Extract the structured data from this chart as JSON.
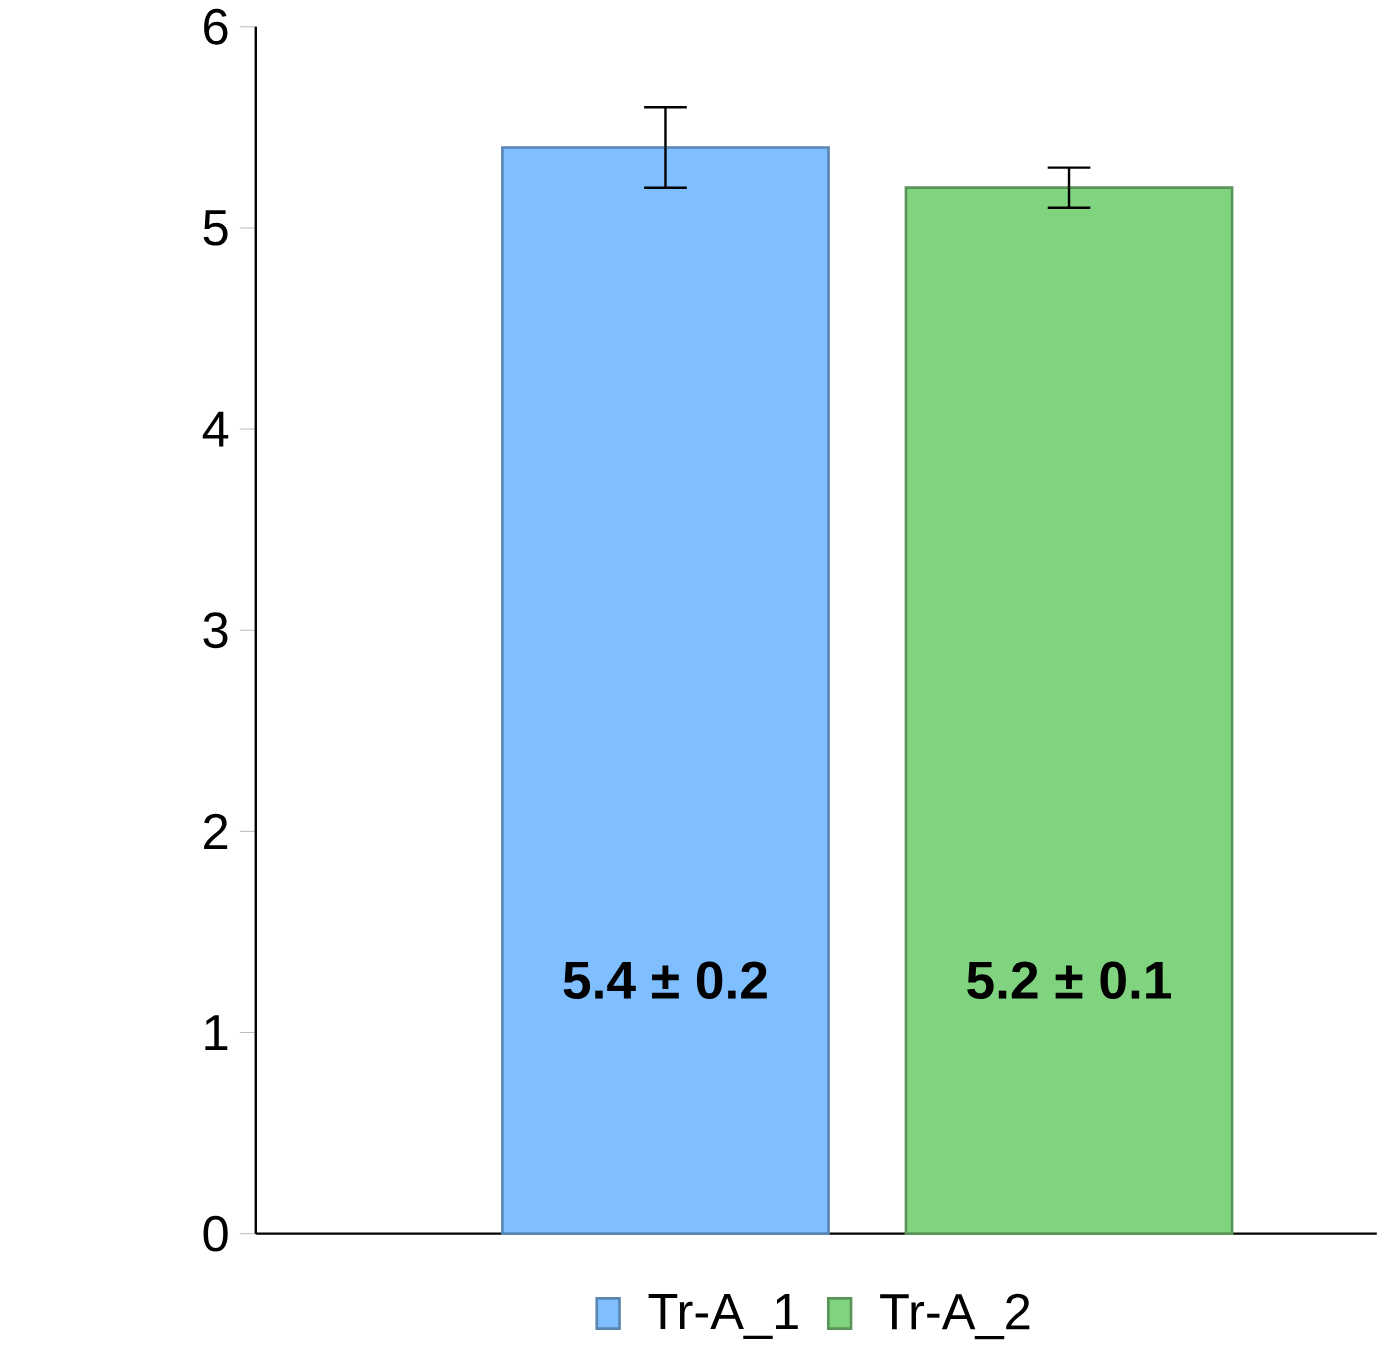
{
  "chart_data": {
    "type": "bar",
    "categories": [
      null
    ],
    "series": [
      {
        "name": "Tr-A_1",
        "color": "#80bfff",
        "values": [
          5.4
        ],
        "errors": [
          0.2
        ],
        "value_labels": [
          "5.4 ± 0.2"
        ]
      },
      {
        "name": "Tr-A_2",
        "color": "#80d480",
        "values": [
          5.2
        ],
        "errors": [
          0.1
        ],
        "value_labels": [
          "5.2 ± 0.1"
        ]
      }
    ],
    "ylim": [
      0,
      6
    ],
    "yticks": [
      0,
      1,
      2,
      3,
      4,
      5,
      6
    ],
    "grid": false,
    "legend": "bottom"
  }
}
